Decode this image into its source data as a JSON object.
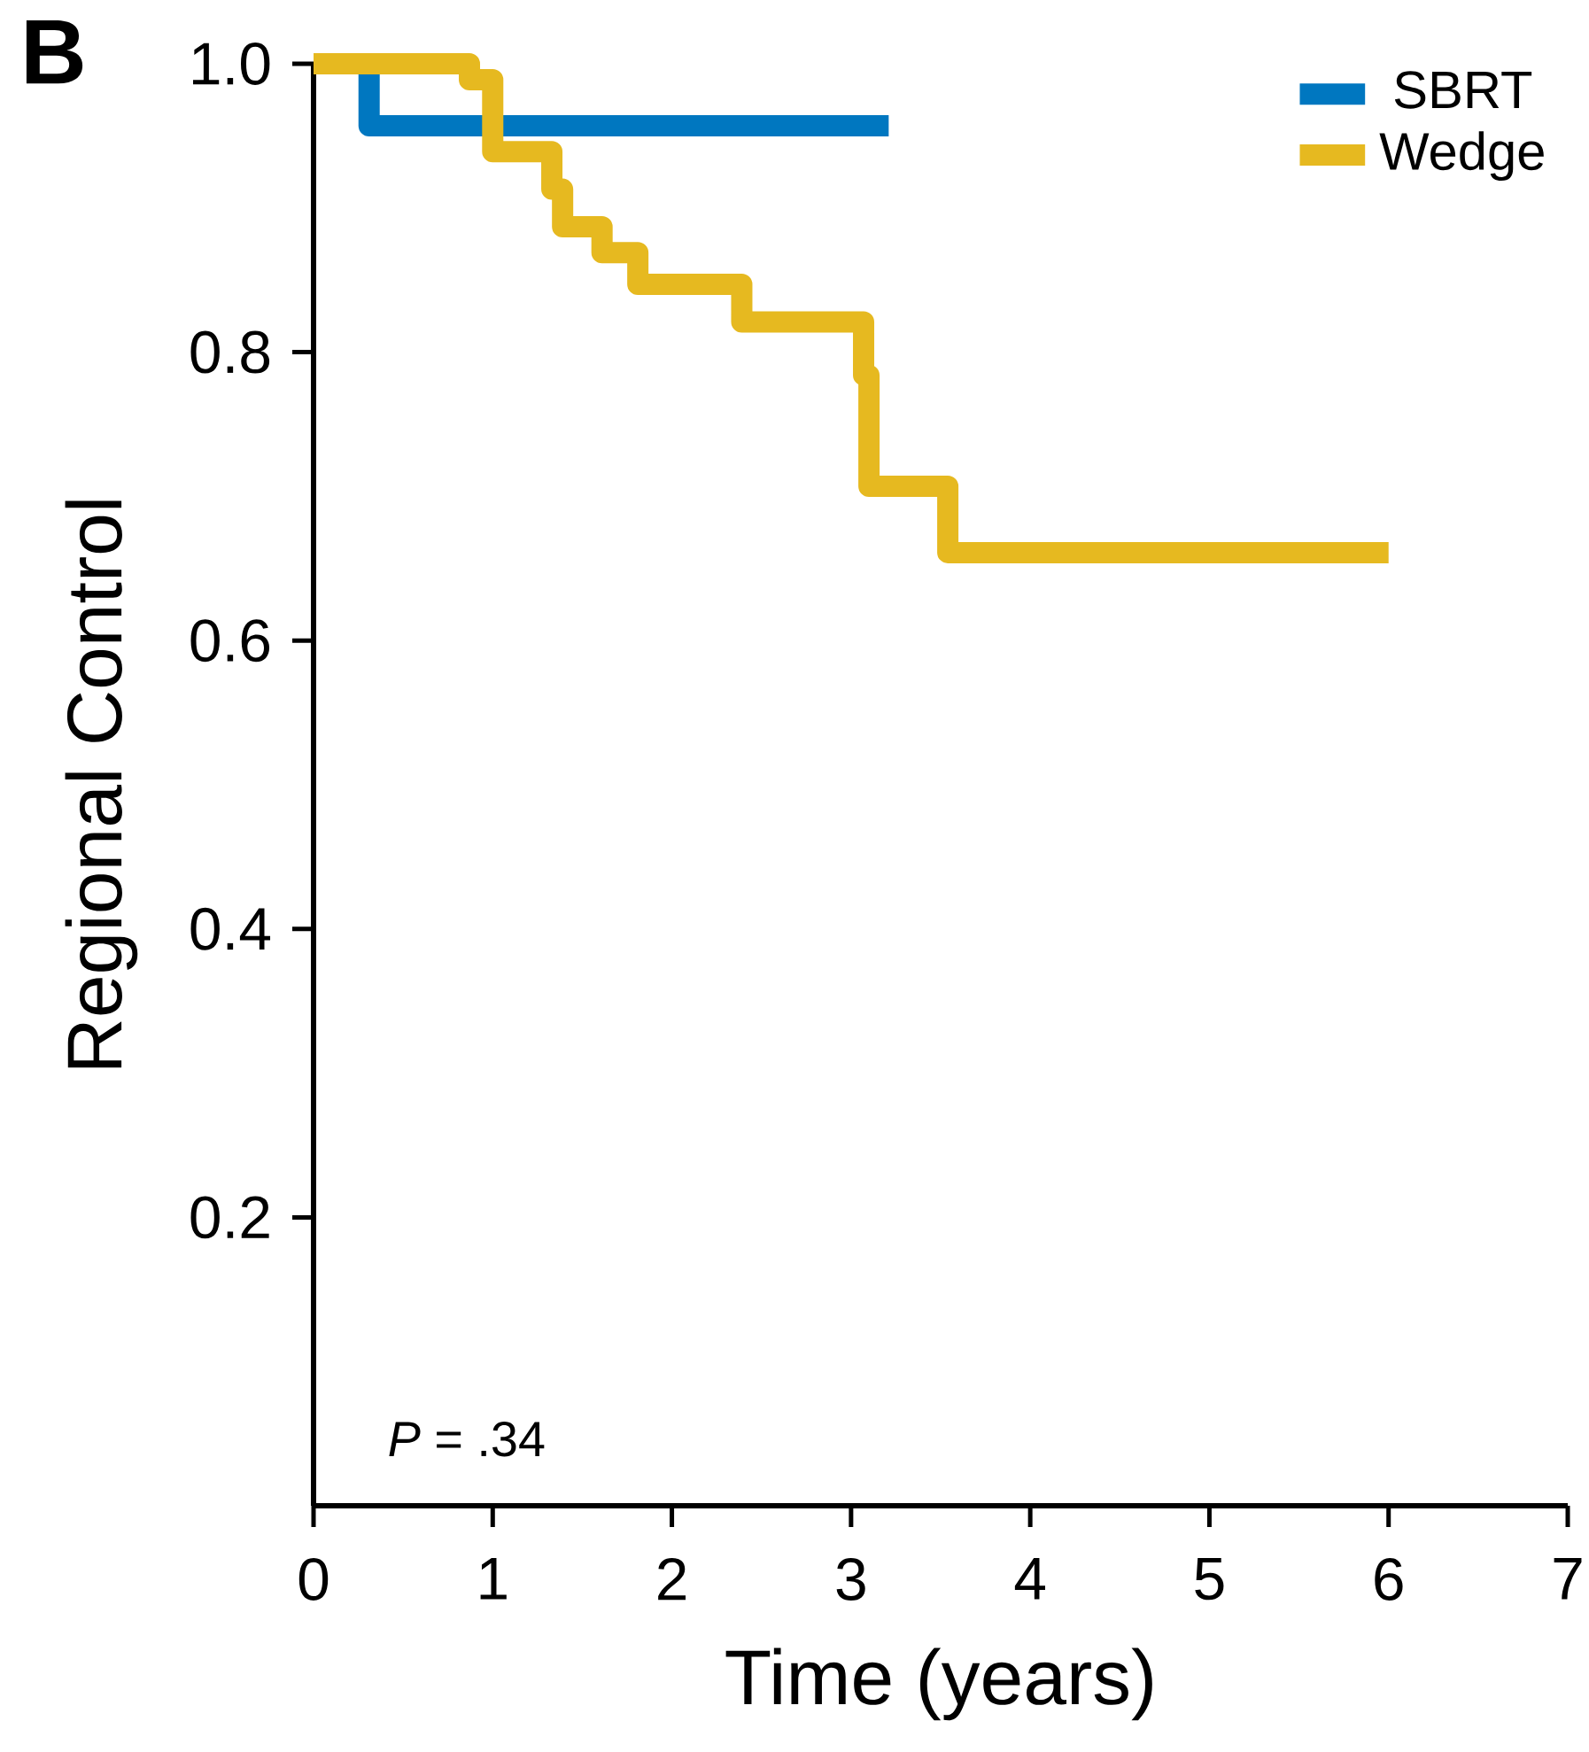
{
  "chart_data": {
    "type": "step",
    "xlabel": "Time (years)",
    "ylabel": "Regional Control",
    "xlim": [
      0,
      7
    ],
    "ylim": [
      0,
      1.0
    ],
    "xticks": [
      0,
      1,
      2,
      3,
      4,
      5,
      6,
      7
    ],
    "yticks": [
      {
        "value": 0.2,
        "label": "0.2"
      },
      {
        "value": 0.4,
        "label": "0.4"
      },
      {
        "value": 0.6,
        "label": "0.6"
      },
      {
        "value": 0.8,
        "label": "0.8"
      },
      {
        "value": 1.0,
        "label": "1.0"
      }
    ],
    "legend": "top right",
    "annotations": [
      "B",
      "*P* = .34"
    ],
    "series": [
      {
        "name": "SBRT",
        "color": "#0077c0",
        "x": [
          0,
          0.31,
          3.21
        ],
        "values": [
          1.0,
          0.957,
          0.957
        ]
      },
      {
        "name": "Wedge",
        "color": "#e6b920",
        "x": [
          0,
          0.87,
          1.0,
          1.33,
          1.39,
          1.61,
          1.81,
          2.39,
          3.07,
          3.1,
          3.54,
          6.0
        ],
        "values": [
          1.0,
          0.989,
          0.939,
          0.913,
          0.887,
          0.869,
          0.847,
          0.821,
          0.784,
          0.707,
          0.661,
          0.661
        ]
      }
    ]
  }
}
